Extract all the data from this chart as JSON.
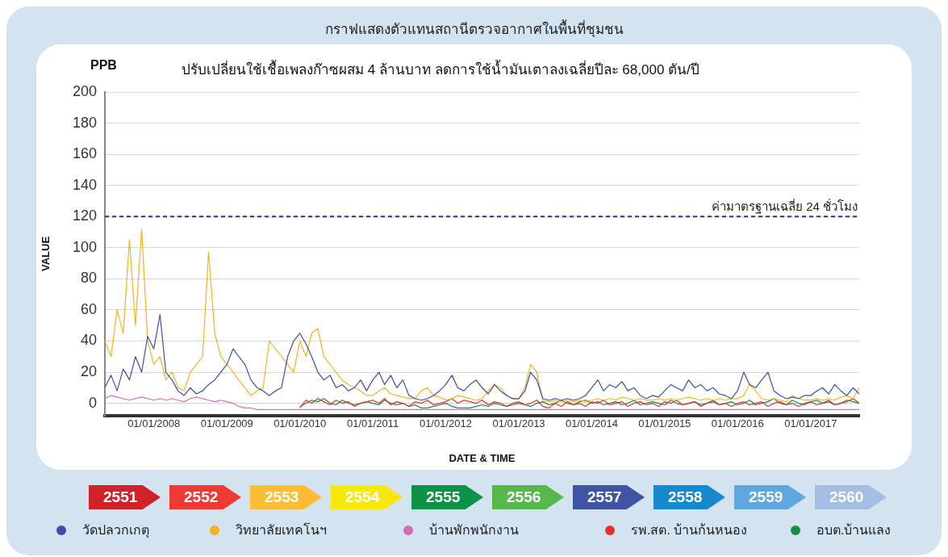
{
  "chart_data": {
    "type": "line",
    "title": "กราฟแสดงตัวแทนสถานีตรวจอากาศในพื้นที่ชุมชน",
    "subtitle": "ปรับเปลี่ยนใช้เชื้อเพลงก๊าซผสม  4 ล้านบาท ลดการใช้น้ำมันเตาลงเฉลี่ยปีละ 68,000 ตัน/ปี",
    "xlabel": "DATE & TIME",
    "ylabel": "VALUE",
    "annotations": [
      "PPB",
      "2551",
      "2552",
      "2553",
      "2554",
      "2555",
      "2556",
      "2557",
      "2558",
      "2559",
      "2560"
    ],
    "x": [
      "2007-05",
      "2007-06",
      "2007-07",
      "2007-08",
      "2007-09",
      "2007-10",
      "2007-11",
      "2007-12",
      "2008-01",
      "2008-02",
      "2008-03",
      "2008-04",
      "2008-05",
      "2008-06",
      "2008-07",
      "2008-08",
      "2008-09",
      "2008-10",
      "2008-11",
      "2008-12",
      "2009-01",
      "2009-02",
      "2009-03",
      "2009-04",
      "2009-05",
      "2009-06",
      "2009-07",
      "2009-08",
      "2009-09",
      "2009-10",
      "2009-11",
      "2009-12",
      "2010-01",
      "2010-02",
      "2010-03",
      "2010-04",
      "2010-05",
      "2010-06",
      "2010-07",
      "2010-08",
      "2010-09",
      "2010-10",
      "2010-11",
      "2010-12",
      "2011-01",
      "2011-02",
      "2011-03",
      "2011-04",
      "2011-05",
      "2011-06",
      "2011-07",
      "2011-08",
      "2011-09",
      "2011-10",
      "2011-11",
      "2011-12",
      "2012-01",
      "2012-02",
      "2012-03",
      "2012-04",
      "2012-05",
      "2012-06",
      "2012-07",
      "2012-08",
      "2012-09",
      "2012-10",
      "2012-11",
      "2012-12",
      "2013-01",
      "2013-02",
      "2013-03",
      "2013-04",
      "2013-05",
      "2013-06",
      "2013-07",
      "2013-08",
      "2013-09",
      "2013-10",
      "2013-11",
      "2013-12",
      "2014-01",
      "2014-02",
      "2014-03",
      "2014-04",
      "2014-05",
      "2014-06",
      "2014-07",
      "2014-08",
      "2014-09",
      "2014-10",
      "2014-11",
      "2014-12",
      "2015-01",
      "2015-02",
      "2015-03",
      "2015-04",
      "2015-05",
      "2015-06",
      "2015-07",
      "2015-08",
      "2015-09",
      "2015-10",
      "2015-11",
      "2015-12",
      "2016-01",
      "2016-02",
      "2016-03",
      "2016-04",
      "2016-05",
      "2016-06",
      "2016-07",
      "2016-08",
      "2016-09",
      "2016-10",
      "2016-11",
      "2016-12",
      "2017-01",
      "2017-02",
      "2017-03",
      "2017-04",
      "2017-05",
      "2017-06",
      "2017-07",
      "2017-08",
      "2017-09"
    ],
    "series": [
      {
        "name": "วัดปลวกเกตุ",
        "color": "#3d4fa8",
        "values": [
          10,
          18,
          8,
          22,
          15,
          30,
          20,
          43,
          35,
          57,
          20,
          15,
          8,
          5,
          10,
          6,
          8,
          12,
          15,
          20,
          25,
          35,
          30,
          25,
          15,
          10,
          8,
          5,
          8,
          10,
          30,
          40,
          45,
          38,
          30,
          20,
          15,
          18,
          10,
          12,
          8,
          10,
          15,
          8,
          15,
          20,
          12,
          18,
          10,
          15,
          5,
          3,
          2,
          3,
          5,
          8,
          12,
          18,
          10,
          8,
          12,
          15,
          10,
          6,
          12,
          8,
          5,
          3,
          3,
          8,
          20,
          15,
          3,
          2,
          3,
          2,
          3,
          2,
          3,
          5,
          10,
          15,
          8,
          12,
          10,
          14,
          8,
          10,
          5,
          3,
          5,
          4,
          8,
          12,
          10,
          8,
          15,
          10,
          12,
          8,
          10,
          6,
          5,
          3,
          8,
          20,
          12,
          10,
          15,
          20,
          8,
          5,
          3,
          4,
          3,
          5,
          5,
          8,
          10,
          6,
          12,
          8,
          5,
          10,
          6
        ]
      },
      {
        "name": "วิทยาลัยเทคโนฯ",
        "color": "#f7b21e",
        "values": [
          40,
          30,
          60,
          45,
          105,
          50,
          112,
          40,
          25,
          30,
          15,
          20,
          10,
          8,
          20,
          25,
          30,
          97,
          45,
          30,
          25,
          20,
          15,
          10,
          5,
          8,
          10,
          40,
          35,
          30,
          25,
          20,
          40,
          30,
          45,
          48,
          30,
          25,
          20,
          15,
          12,
          10,
          8,
          5,
          5,
          8,
          10,
          6,
          5,
          4,
          3,
          3,
          8,
          10,
          5,
          4,
          2,
          3,
          5,
          4,
          3,
          2,
          3,
          8,
          12,
          10,
          5,
          3,
          3,
          10,
          25,
          20,
          2,
          1,
          2,
          1,
          2,
          1,
          2,
          1,
          2,
          3,
          2,
          3,
          2,
          4,
          3,
          2,
          3,
          2,
          2,
          3,
          2,
          3,
          2,
          3,
          4,
          3,
          2,
          3,
          2,
          3,
          2,
          3,
          3,
          5,
          12,
          8,
          3,
          2,
          3,
          2,
          1,
          5,
          3,
          2,
          2,
          3,
          2,
          3,
          2,
          4,
          5,
          3,
          10
        ]
      },
      {
        "name": "บ้านพักพนักงาน",
        "color": "#d46cb3",
        "values": [
          3,
          5,
          4,
          3,
          2,
          3,
          4,
          3,
          2,
          3,
          2,
          3,
          2,
          1,
          3,
          4,
          3,
          2,
          1,
          2,
          1,
          0,
          -2,
          -3,
          -3,
          -4,
          -4,
          -4,
          -4,
          -4,
          -4,
          -4,
          -4,
          -4,
          -4,
          -4,
          -4,
          -4,
          -4,
          -4,
          -4,
          -4,
          -4,
          -4,
          -4,
          -4,
          -4,
          -4,
          -4,
          -4,
          -4,
          -4,
          -4,
          -4,
          -4,
          -4,
          -4,
          -4,
          -4,
          -4,
          -4,
          -4,
          -4,
          -4,
          -4,
          -4,
          -4,
          -4,
          -4,
          -4,
          -4,
          -4,
          -4,
          -4,
          -4,
          -4,
          -4,
          -4,
          -4,
          -4,
          -4,
          -4,
          -4,
          -4,
          -4,
          -4,
          -4,
          -4,
          -4,
          -4,
          -4,
          -4,
          -4,
          -4,
          -4,
          -4,
          -4,
          -4,
          -4,
          -4,
          -4,
          -4,
          -4,
          -4,
          -4,
          -4,
          -4,
          -4,
          -4,
          -4,
          -4,
          -4,
          -4,
          -4,
          -4,
          -4,
          -4,
          -4,
          -4,
          -4,
          -4,
          -4,
          -4,
          -4,
          -4
        ]
      },
      {
        "name": "รพ.สต. บ้านก้นหนอง",
        "color": "#e5312e",
        "values": [
          null,
          null,
          null,
          null,
          null,
          null,
          null,
          null,
          null,
          null,
          null,
          null,
          null,
          null,
          null,
          null,
          null,
          null,
          null,
          null,
          null,
          null,
          null,
          null,
          null,
          null,
          null,
          null,
          null,
          null,
          null,
          null,
          -3,
          2,
          0,
          3,
          1,
          -1,
          2,
          0,
          1,
          -2,
          0,
          1,
          2,
          0,
          3,
          -1,
          1,
          0,
          -2,
          1,
          0,
          2,
          -1,
          0,
          1,
          3,
          0,
          2,
          1,
          0,
          2,
          -1,
          1,
          0,
          -2,
          0,
          1,
          -1,
          0,
          2,
          -2,
          -3,
          0,
          -2,
          1,
          -1,
          0,
          -2,
          1,
          0,
          2,
          -1,
          0,
          1,
          -2,
          0,
          1,
          -1,
          0,
          -2,
          1,
          0,
          2,
          -1,
          0,
          1,
          -2,
          0,
          1,
          -1,
          0,
          -2,
          0,
          1,
          -1,
          0,
          1,
          -2,
          0,
          1,
          -1,
          0,
          -2,
          0,
          1,
          -1,
          0,
          2,
          -1,
          0,
          1,
          3,
          0
        ]
      },
      {
        "name": "อบต.บ้านแลง",
        "color": "#119146",
        "values": [
          null,
          null,
          null,
          null,
          null,
          null,
          null,
          null,
          null,
          null,
          null,
          null,
          null,
          null,
          null,
          null,
          null,
          null,
          null,
          null,
          null,
          null,
          null,
          null,
          null,
          null,
          null,
          null,
          null,
          null,
          null,
          null,
          -2,
          0,
          2,
          1,
          3,
          0,
          -1,
          2,
          0,
          -1,
          0,
          1,
          0,
          -1,
          2,
          0,
          -1,
          0,
          -2,
          -1,
          -3,
          -3,
          -2,
          -1,
          0,
          -2,
          -3,
          -3,
          -3,
          -2,
          -1,
          -2,
          0,
          -1,
          -2,
          -1,
          0,
          -1,
          -2,
          0,
          1,
          -1,
          0,
          2,
          0,
          -1,
          1,
          2,
          0,
          1,
          -1,
          0,
          1,
          -1,
          0,
          2,
          -1,
          0,
          1,
          0,
          -1,
          2,
          0,
          -1,
          0,
          1,
          -1,
          0,
          2,
          -1,
          0,
          1,
          -1,
          0,
          2,
          -1,
          0,
          1,
          3,
          0,
          -1,
          2,
          0,
          -1,
          1,
          2,
          0,
          1,
          -1,
          0,
          2,
          1,
          0
        ]
      }
    ],
    "xlim": [
      "2007-05",
      "2017-09"
    ],
    "xticks": [
      {
        "value": "2008-01-01",
        "label": "01/01/2008"
      },
      {
        "value": "2009-01-01",
        "label": "01/01/2009"
      },
      {
        "value": "2010-01-01",
        "label": "01/01/2010"
      },
      {
        "value": "2011-01-01",
        "label": "01/01/2011"
      },
      {
        "value": "2012-01-01",
        "label": "01/01/2012"
      },
      {
        "value": "2013-01-01",
        "label": "01/01/2013"
      },
      {
        "value": "2014-01-01",
        "label": "01/01/2014"
      },
      {
        "value": "2015-01-01",
        "label": "01/01/2015"
      },
      {
        "value": "2016-01-01",
        "label": "01/01/2016"
      },
      {
        "value": "2017-01-01",
        "label": "01/01/2017"
      }
    ],
    "ylim": [
      -8,
      200
    ],
    "yticks": [
      0,
      20,
      40,
      60,
      80,
      100,
      120,
      140,
      160,
      180,
      200
    ],
    "ref_lines": [
      {
        "axis": "y",
        "value": 120,
        "label": "ค่ามาตรฐานเฉลี่ย 24 ชั่วโมง",
        "color": "#2a2f8f",
        "line_style": "dashed"
      }
    ],
    "grid": "y",
    "legend": "bottom",
    "marker": "none",
    "line_style": "solid"
  }
}
